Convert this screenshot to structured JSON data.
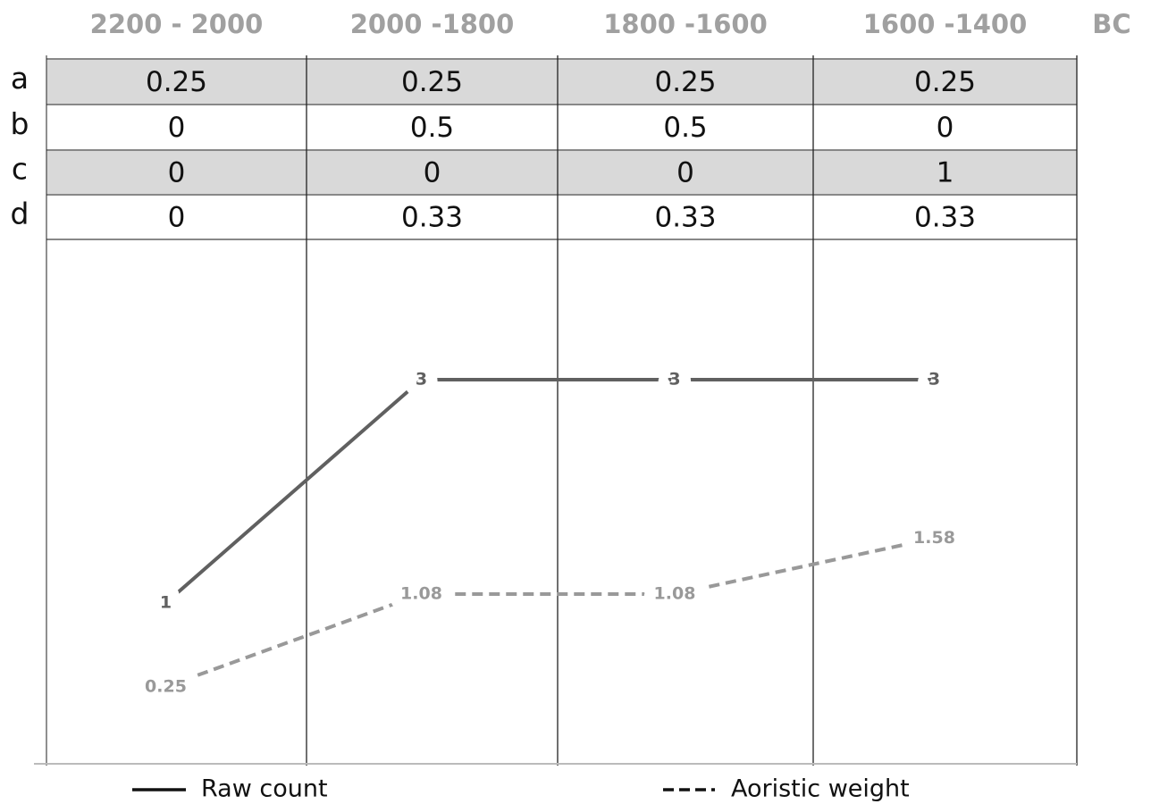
{
  "chart_data": {
    "type": "line",
    "categories": [
      "2200 - 2000",
      "2000 -1800",
      "1800 -1600",
      "1600 -1400"
    ],
    "x_label": "BC",
    "series": [
      {
        "name": "Raw count",
        "color": "#606060",
        "dash": false,
        "values": [
          1,
          3,
          3,
          3
        ]
      },
      {
        "name": "Aoristic weight",
        "color": "#999999",
        "dash": true,
        "values": [
          0.25,
          1.08,
          1.08,
          1.58
        ]
      }
    ]
  },
  "table": {
    "rows": [
      {
        "label": "a",
        "values": [
          0.25,
          0.25,
          0.25,
          0.25
        ]
      },
      {
        "label": "b",
        "values": [
          0,
          0.5,
          0.5,
          0
        ]
      },
      {
        "label": "c",
        "values": [
          0,
          0,
          0,
          1
        ]
      },
      {
        "label": "d",
        "values": [
          0,
          0.33,
          0.33,
          0.33
        ]
      }
    ]
  }
}
